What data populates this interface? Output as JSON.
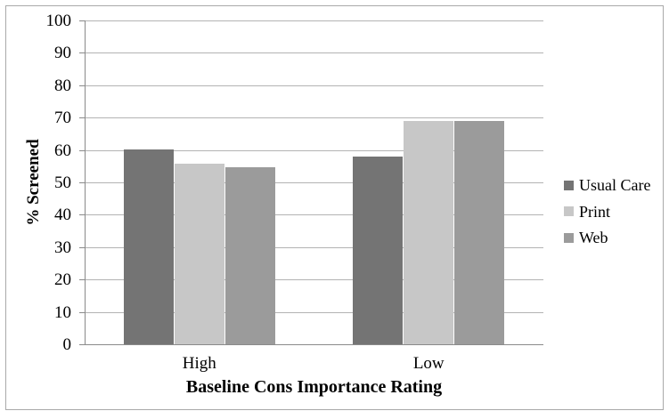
{
  "figure": {
    "description": "Grouped bar chart of percent screened by baseline cons importance rating"
  },
  "chart_data": {
    "type": "bar",
    "title": "",
    "categories": [
      "High",
      "Low"
    ],
    "series": [
      {
        "name": "Usual Care",
        "values": [
          60.3,
          58.0
        ],
        "color": "#747474"
      },
      {
        "name": "Print",
        "values": [
          55.7,
          69.0
        ],
        "color": "#c7c7c7"
      },
      {
        "name": "Web",
        "values": [
          54.6,
          69.0
        ],
        "color": "#9b9b9b"
      }
    ],
    "xlabel": "Baseline Cons Importance Rating",
    "ylabel": "% Screened",
    "ylim": [
      0,
      100
    ],
    "ytick_step": 10,
    "yticks": [
      0,
      10,
      20,
      30,
      40,
      50,
      60,
      70,
      80,
      90,
      100
    ],
    "grid": true,
    "legend_position": "right",
    "colors": {
      "gridline": "#b3b3b3",
      "axis": "#8a8a8a",
      "figure_border": "#a9a9a9",
      "text": "#000000",
      "background": "#ffffff"
    }
  }
}
